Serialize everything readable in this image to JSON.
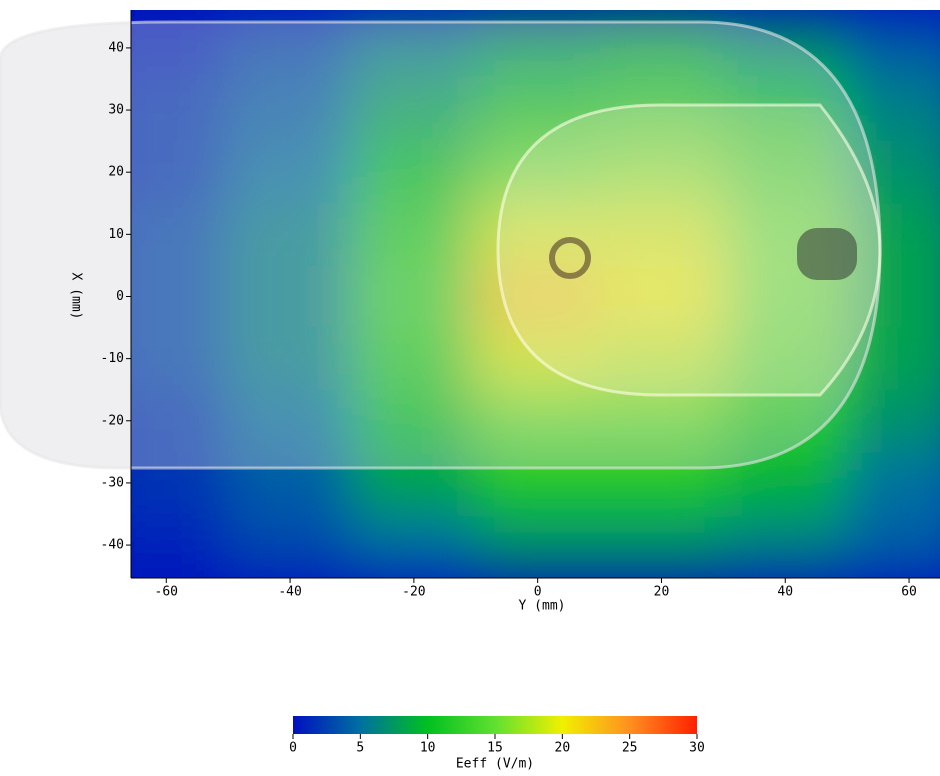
{
  "chart_data": {
    "type": "heatmap",
    "x": [
      -60,
      -40,
      -20,
      0,
      20,
      40,
      60
    ],
    "y": [
      40,
      30,
      20,
      10,
      0,
      -10,
      -20,
      -30,
      -40
    ],
    "z": [
      [
        1,
        3,
        6,
        8,
        9,
        7,
        4
      ],
      [
        2,
        4,
        8,
        11,
        12,
        10,
        6
      ],
      [
        2,
        5,
        10,
        15,
        16,
        13,
        7
      ],
      [
        3,
        6,
        12,
        19,
        19,
        15,
        8
      ],
      [
        3,
        6,
        13,
        22,
        20,
        15,
        8
      ],
      [
        3,
        6,
        12,
        19,
        18,
        14,
        8
      ],
      [
        2,
        5,
        10,
        15,
        15,
        12,
        7
      ],
      [
        2,
        4,
        8,
        11,
        11,
        9,
        5
      ],
      [
        1,
        3,
        5,
        7,
        7,
        6,
        4
      ]
    ],
    "xlim": [
      -65.7,
      65
    ],
    "ylim": [
      -45.3,
      46.1
    ],
    "xticks": [
      -60,
      -40,
      -20,
      0,
      20,
      40,
      60
    ],
    "yticks": [
      40,
      30,
      20,
      10,
      0,
      -10,
      -20,
      -30,
      -40
    ],
    "xlabel": "Y (mm)",
    "ylabel": "X (mm)",
    "colorbar": {
      "label": "Eeff (V/m)",
      "lim": [
        0,
        30
      ],
      "ticks": [
        0,
        5,
        10,
        15,
        20,
        25,
        30
      ],
      "colors": [
        "#0010c0",
        "#0070a0",
        "#00c020",
        "#60e030",
        "#f0f000",
        "#ff9020",
        "#ff2000"
      ]
    }
  }
}
